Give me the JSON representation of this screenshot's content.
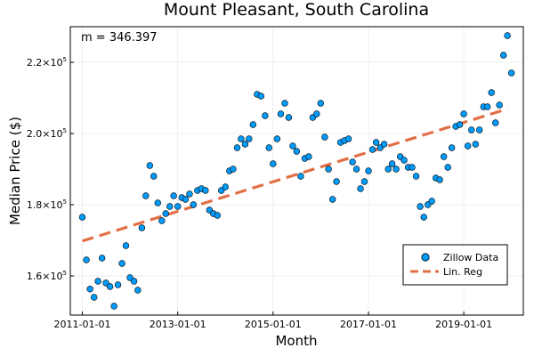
{
  "chart_data": {
    "type": "scatter",
    "title": "Mount Pleasant, South Carolina",
    "xlabel": "Month",
    "ylabel": "Median Price ($)",
    "annotation": "m = 346.397",
    "x_ticks": [
      "2011-01-01",
      "2013-01-01",
      "2015-01-01",
      "2017-01-01",
      "2019-01-01"
    ],
    "y_ticks": [
      {
        "value": 160000,
        "mantissa": "1.6×10",
        "exp": "5"
      },
      {
        "value": 180000,
        "mantissa": "1.8×10",
        "exp": "5"
      },
      {
        "value": 200000,
        "mantissa": "2.0×10",
        "exp": "5"
      },
      {
        "value": 220000,
        "mantissa": "2.2×10",
        "exp": "5"
      }
    ],
    "xlim": [
      "2010-10-01",
      "2020-04-01"
    ],
    "ylim": [
      149000,
      230000
    ],
    "grid": true,
    "legend_position": "bottom-right",
    "colors": {
      "points": "#009AFA",
      "regression": "#E26F46"
    },
    "series": [
      {
        "name": "Zillow Data",
        "kind": "scatter",
        "points": [
          [
            "2011-01-01",
            176500
          ],
          [
            "2011-02-01",
            164500
          ],
          [
            "2011-03-01",
            156300
          ],
          [
            "2011-04-01",
            154000
          ],
          [
            "2011-05-01",
            158500
          ],
          [
            "2011-06-01",
            165000
          ],
          [
            "2011-07-01",
            158000
          ],
          [
            "2011-08-01",
            157000
          ],
          [
            "2011-09-01",
            151500
          ],
          [
            "2011-10-01",
            157500
          ],
          [
            "2011-11-01",
            163500
          ],
          [
            "2011-12-01",
            168500
          ],
          [
            "2012-01-01",
            159500
          ],
          [
            "2012-02-01",
            158500
          ],
          [
            "2012-03-01",
            156000
          ],
          [
            "2012-04-01",
            173500
          ],
          [
            "2012-05-01",
            182500
          ],
          [
            "2012-06-01",
            191000
          ],
          [
            "2012-07-01",
            188000
          ],
          [
            "2012-08-01",
            180500
          ],
          [
            "2012-09-01",
            175500
          ],
          [
            "2012-10-01",
            177500
          ],
          [
            "2012-11-01",
            179500
          ],
          [
            "2012-12-01",
            182500
          ],
          [
            "2013-01-01",
            179500
          ],
          [
            "2013-02-01",
            182000
          ],
          [
            "2013-03-01",
            181500
          ],
          [
            "2013-04-01",
            183000
          ],
          [
            "2013-05-01",
            180000
          ],
          [
            "2013-06-01",
            184000
          ],
          [
            "2013-07-01",
            184500
          ],
          [
            "2013-08-01",
            184000
          ],
          [
            "2013-09-01",
            178500
          ],
          [
            "2013-10-01",
            177500
          ],
          [
            "2013-11-01",
            177000
          ],
          [
            "2013-12-01",
            184000
          ],
          [
            "2014-01-01",
            185000
          ],
          [
            "2014-02-01",
            189500
          ],
          [
            "2014-03-01",
            190000
          ],
          [
            "2014-04-01",
            196000
          ],
          [
            "2014-05-01",
            198500
          ],
          [
            "2014-06-01",
            197000
          ],
          [
            "2014-07-01",
            198500
          ],
          [
            "2014-08-01",
            202500
          ],
          [
            "2014-09-01",
            211000
          ],
          [
            "2014-10-01",
            210500
          ],
          [
            "2014-11-01",
            205000
          ],
          [
            "2014-12-01",
            196000
          ],
          [
            "2015-01-01",
            191500
          ],
          [
            "2015-02-01",
            198500
          ],
          [
            "2015-03-01",
            205500
          ],
          [
            "2015-04-01",
            208500
          ],
          [
            "2015-05-01",
            204500
          ],
          [
            "2015-06-01",
            196500
          ],
          [
            "2015-07-01",
            195000
          ],
          [
            "2015-08-01",
            188000
          ],
          [
            "2015-09-01",
            193000
          ],
          [
            "2015-10-01",
            193500
          ],
          [
            "2015-11-01",
            204500
          ],
          [
            "2015-12-01",
            205500
          ],
          [
            "2016-01-01",
            208500
          ],
          [
            "2016-02-01",
            199000
          ],
          [
            "2016-03-01",
            190000
          ],
          [
            "2016-04-01",
            181500
          ],
          [
            "2016-05-01",
            186500
          ],
          [
            "2016-06-01",
            197500
          ],
          [
            "2016-07-01",
            198000
          ],
          [
            "2016-08-01",
            198500
          ],
          [
            "2016-09-01",
            192000
          ],
          [
            "2016-10-01",
            190000
          ],
          [
            "2016-11-01",
            184500
          ],
          [
            "2016-12-01",
            186500
          ],
          [
            "2017-01-01",
            189500
          ],
          [
            "2017-02-01",
            195500
          ],
          [
            "2017-03-01",
            197500
          ],
          [
            "2017-04-01",
            196000
          ],
          [
            "2017-05-01",
            197000
          ],
          [
            "2017-06-01",
            190000
          ],
          [
            "2017-07-01",
            191500
          ],
          [
            "2017-08-01",
            190000
          ],
          [
            "2017-09-01",
            193500
          ],
          [
            "2017-10-01",
            192500
          ],
          [
            "2017-11-01",
            190500
          ],
          [
            "2017-12-01",
            190500
          ],
          [
            "2018-01-01",
            188000
          ],
          [
            "2018-02-01",
            179500
          ],
          [
            "2018-03-01",
            176500
          ],
          [
            "2018-04-01",
            180000
          ],
          [
            "2018-05-01",
            181000
          ],
          [
            "2018-06-01",
            187500
          ],
          [
            "2018-07-01",
            187000
          ],
          [
            "2018-08-01",
            193500
          ],
          [
            "2018-09-01",
            190500
          ],
          [
            "2018-10-01",
            196000
          ],
          [
            "2018-11-01",
            202000
          ],
          [
            "2018-12-01",
            202500
          ],
          [
            "2019-01-01",
            205500
          ],
          [
            "2019-02-01",
            196500
          ],
          [
            "2019-03-01",
            201000
          ],
          [
            "2019-04-01",
            197000
          ],
          [
            "2019-05-01",
            201000
          ],
          [
            "2019-06-01",
            207500
          ],
          [
            "2019-07-01",
            207500
          ],
          [
            "2019-08-01",
            211500
          ],
          [
            "2019-09-01",
            203000
          ],
          [
            "2019-10-01",
            208000
          ],
          [
            "2019-11-01",
            222000
          ],
          [
            "2019-12-01",
            227500
          ],
          [
            "2020-01-01",
            217000
          ]
        ]
      },
      {
        "name": "Lin. Reg",
        "kind": "line",
        "style": "dashed",
        "points": [
          [
            "2011-01-01",
            169800
          ],
          [
            "2019-12-01",
            206900
          ]
        ]
      }
    ]
  }
}
